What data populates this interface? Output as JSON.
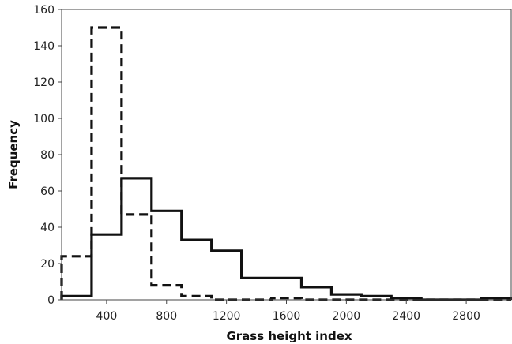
{
  "chart_data": {
    "type": "line",
    "title": "",
    "xlabel": "Grass height index",
    "ylabel": "Frequency",
    "xlim": [
      100,
      3100
    ],
    "ylim": [
      0,
      160
    ],
    "x_ticks": [
      400,
      800,
      1200,
      1600,
      2000,
      2400,
      2800
    ],
    "y_ticks": [
      0,
      20,
      40,
      60,
      80,
      100,
      120,
      140,
      160
    ],
    "grid": false,
    "legend": "none",
    "bin_edges": [
      100,
      300,
      500,
      700,
      900,
      1100,
      1300,
      1500,
      1700,
      1900,
      2100,
      2300,
      2500,
      2700,
      2900,
      3100
    ],
    "series": [
      {
        "style": "solid",
        "color": "#111111",
        "values": [
          2,
          36,
          67,
          49,
          33,
          27,
          12,
          12,
          7,
          3,
          2,
          1,
          0,
          0,
          1
        ]
      },
      {
        "style": "dashed",
        "color": "#111111",
        "values": [
          24,
          150,
          47,
          8,
          2,
          0,
          0,
          1,
          0,
          0,
          0,
          0,
          0,
          0,
          0
        ]
      }
    ]
  }
}
